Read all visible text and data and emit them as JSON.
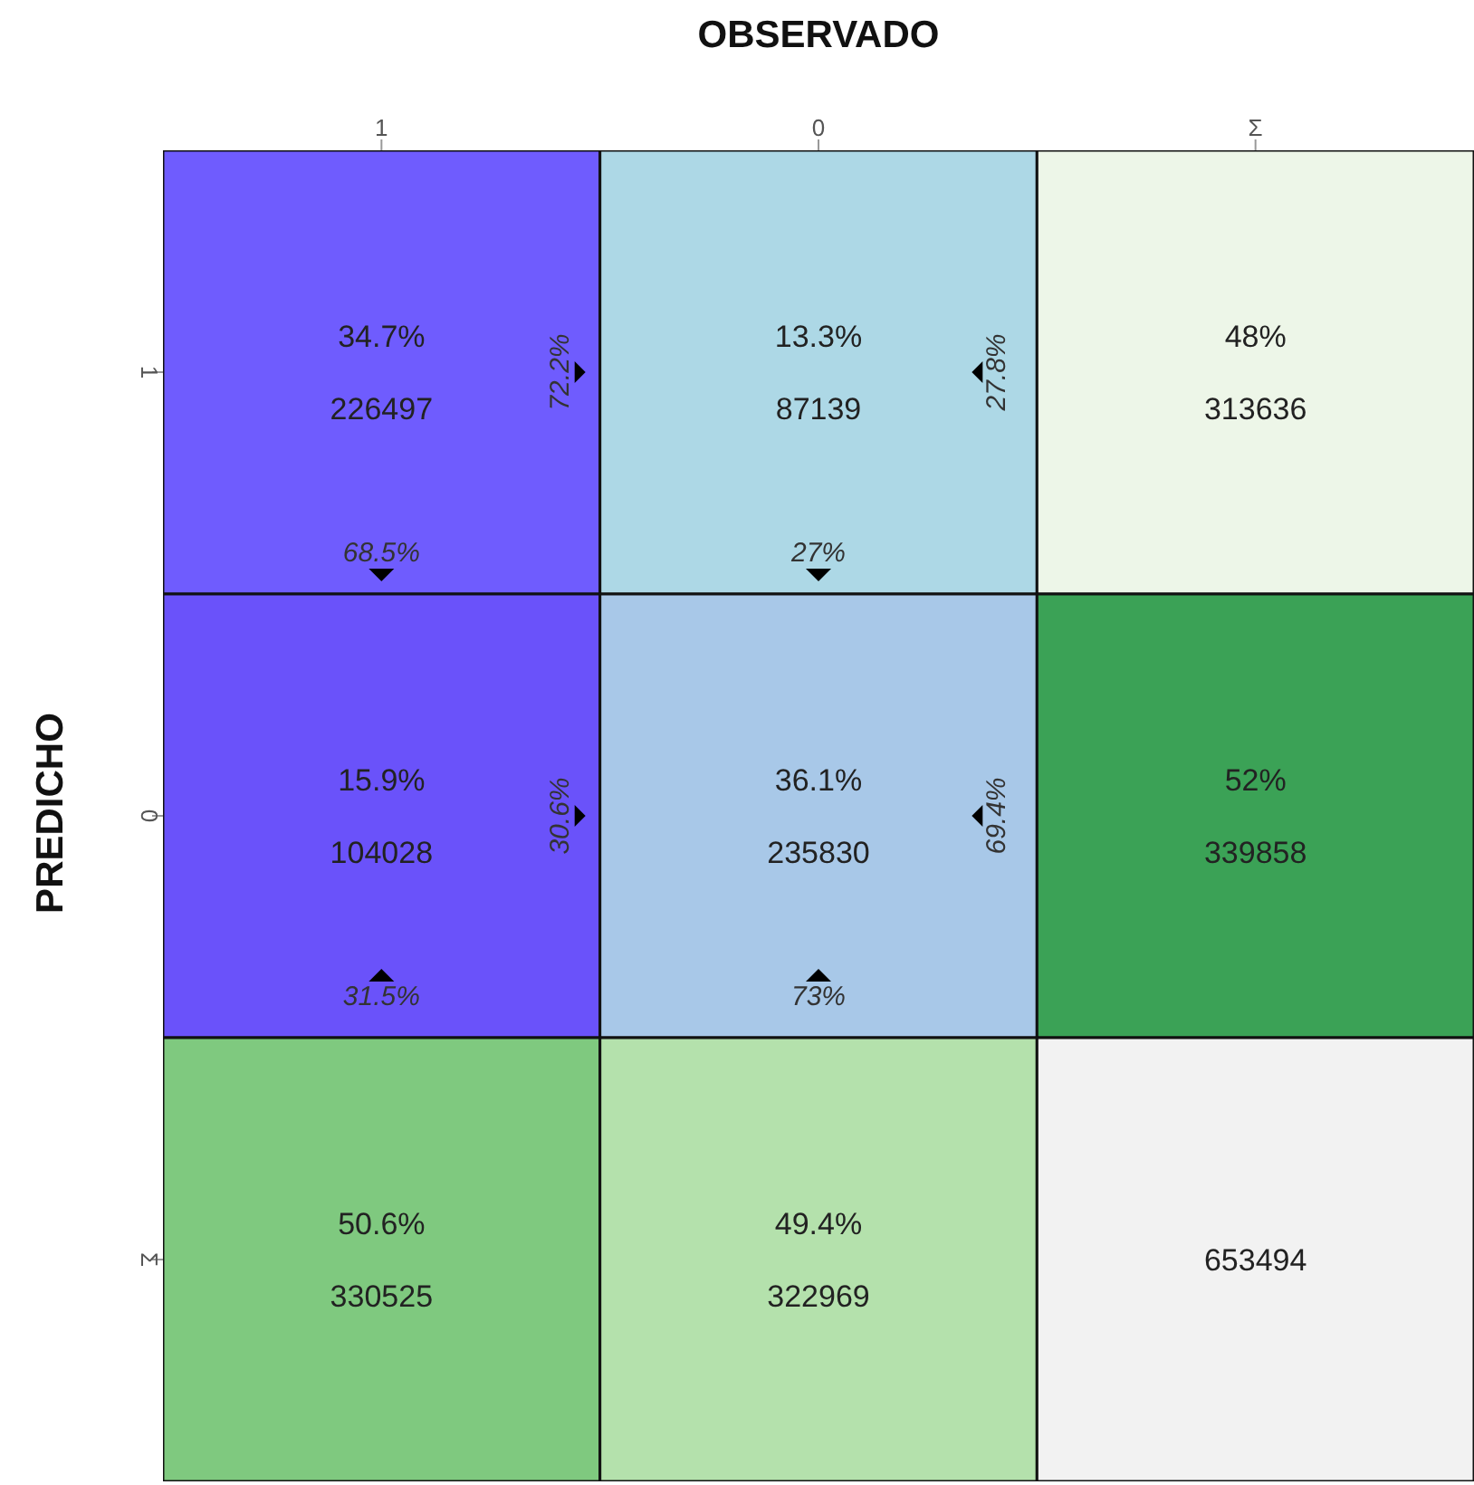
{
  "chart_data": {
    "type": "heatmap",
    "xlabel": "OBSERVADO",
    "ylabel": "PREDICHO",
    "categories": [
      "1",
      "0",
      "Σ"
    ],
    "y_categories": [
      "1",
      "0",
      "Σ"
    ],
    "cells": [
      [
        226497,
        87139,
        313636
      ],
      [
        104028,
        235830,
        339858
      ],
      [
        330525,
        322969,
        653494
      ]
    ],
    "data_labels": true,
    "colors": [
      [
        "#6f5cfe",
        "#add8e6",
        "#edf6e8"
      ],
      [
        "#6a52fa",
        "#a8c8e8",
        "#3ba256"
      ],
      [
        "#7fc97f",
        "#b4e1ac",
        "#f2f2f2"
      ]
    ],
    "annotations": [
      "34.7%",
      "13.3%",
      "48%",
      "15.9%",
      "36.1%",
      "52%",
      "50.6%",
      "49.4%",
      "72.2%",
      "68.5%",
      "27.8%",
      "27%",
      "30.6%",
      "31.5%",
      "69.4%",
      "73%"
    ]
  }
}
